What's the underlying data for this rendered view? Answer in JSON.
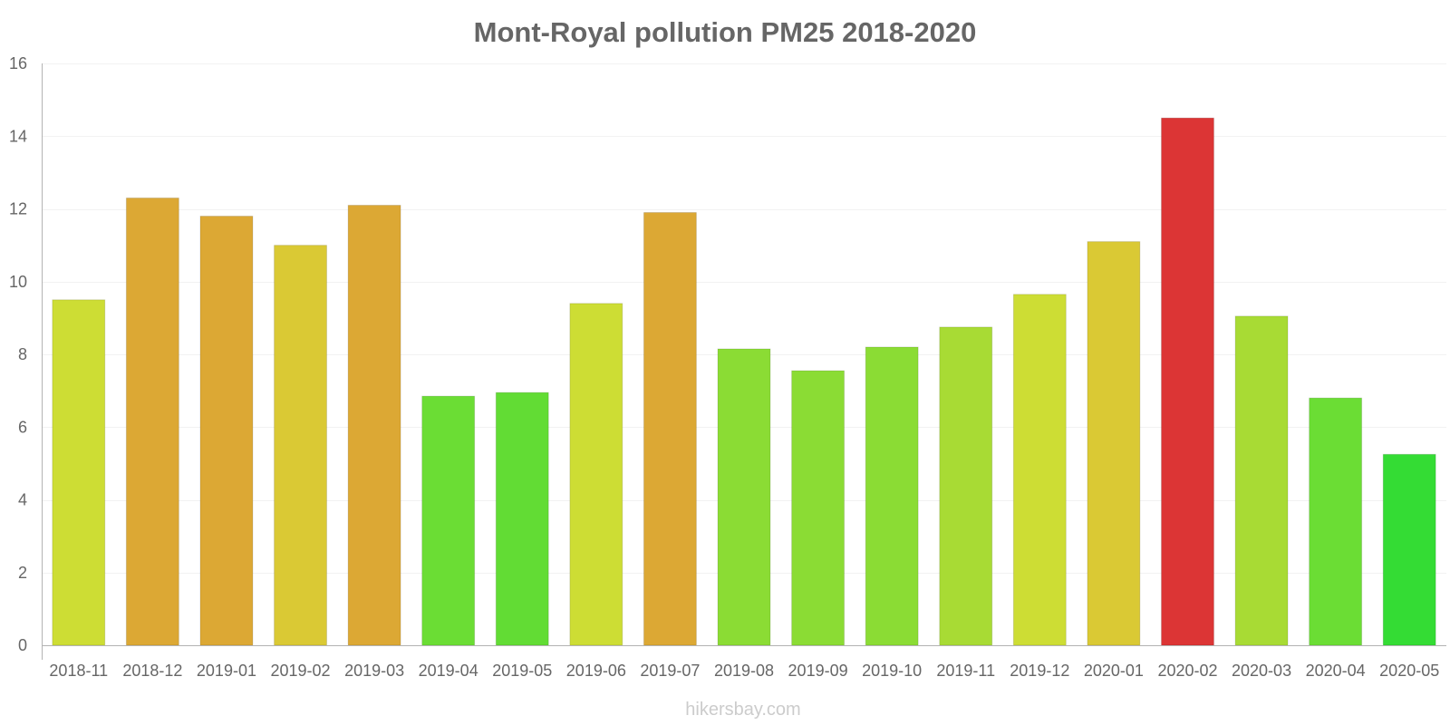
{
  "chart_data": {
    "type": "bar",
    "title": "Mont-Royal pollution PM25 2018-2020",
    "xlabel": "",
    "ylabel": "",
    "ylim": [
      0,
      16
    ],
    "yticks": [
      "0",
      "2",
      "4",
      "6",
      "8",
      "10",
      "12",
      "14",
      "16"
    ],
    "categories": [
      "2018-11",
      "2018-12",
      "2019-01",
      "2019-02",
      "2019-03",
      "2019-04",
      "2019-05",
      "2019-06",
      "2019-07",
      "2019-08",
      "2019-09",
      "2019-10",
      "2019-11",
      "2019-12",
      "2020-01",
      "2020-02",
      "2020-03",
      "2020-04",
      "2020-05"
    ],
    "values": [
      9.5,
      12.3,
      11.8,
      11.0,
      12.1,
      6.85,
      6.95,
      9.4,
      11.9,
      8.15,
      7.55,
      8.2,
      8.75,
      9.65,
      11.1,
      14.5,
      9.05,
      6.8,
      5.25
    ],
    "colors": [
      "#cddd34",
      "#dca834",
      "#dca834",
      "#dac934",
      "#dca834",
      "#6bdd34",
      "#62dc34",
      "#cddd34",
      "#dca834",
      "#8bdc34",
      "#8bdc34",
      "#8bdc34",
      "#a8db34",
      "#cddd34",
      "#dac934",
      "#dc3535",
      "#a8db34",
      "#6bdd34",
      "#34dc34"
    ],
    "grid": true,
    "legend": "none"
  },
  "watermark": "hikersbay.com"
}
